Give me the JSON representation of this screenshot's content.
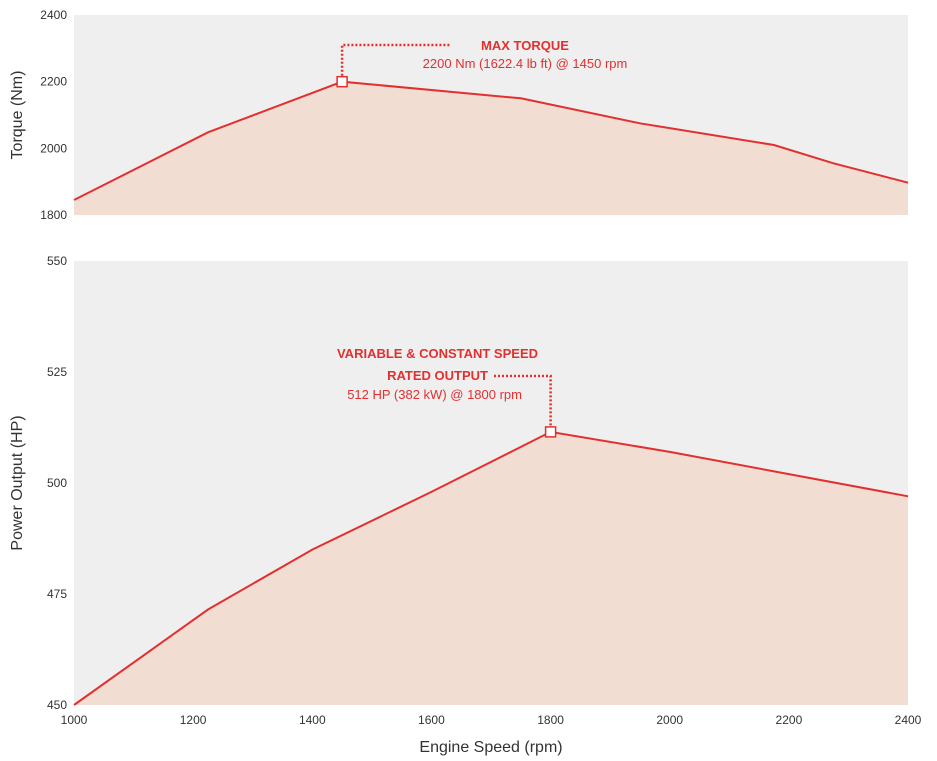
{
  "colors": {
    "line": "#e2302f",
    "fill": "#f2ddd3",
    "plot_bg": "#efeff0",
    "annotation": "#e2302f",
    "text": "#333333"
  },
  "chart_data": [
    {
      "type": "area",
      "ylabel": "Torque (Nm)",
      "xlim": [
        1000,
        2400
      ],
      "ylim": [
        1800,
        2400
      ],
      "yticks": [
        1800,
        2000,
        2200,
        2400
      ],
      "grid": false,
      "series": [
        {
          "x": [
            1000,
            1225,
            1450,
            1750,
            1950,
            2175,
            2275,
            2400
          ],
          "y": [
            1845,
            2048,
            2200,
            2150,
            2075,
            2010,
            1955,
            1897
          ]
        }
      ],
      "annotation": {
        "x": 1450,
        "y": 2200,
        "title": "MAX TORQUE",
        "detail": "2200 Nm (1622.4 lb ft) @ 1450 rpm"
      }
    },
    {
      "type": "area",
      "xlabel": "Engine Speed (rpm)",
      "ylabel": "Power Output (HP)",
      "xlim": [
        1000,
        2400
      ],
      "ylim": [
        450,
        550
      ],
      "xticks": [
        1000,
        1200,
        1400,
        1600,
        1800,
        2000,
        2200,
        2400
      ],
      "yticks": [
        450,
        475,
        500,
        525,
        550
      ],
      "grid": false,
      "series": [
        {
          "x": [
            1000,
            1225,
            1400,
            1600,
            1800,
            2000,
            2200,
            2400
          ],
          "y": [
            450,
            471.5,
            485,
            498,
            511.5,
            507,
            502,
            497
          ]
        }
      ],
      "annotation": {
        "x": 1800,
        "y": 511.5,
        "title_line1": "VARIABLE & CONSTANT SPEED",
        "title_line2": "RATED OUTPUT",
        "detail": "512 HP (382 kW) @ 1800 rpm"
      }
    }
  ]
}
